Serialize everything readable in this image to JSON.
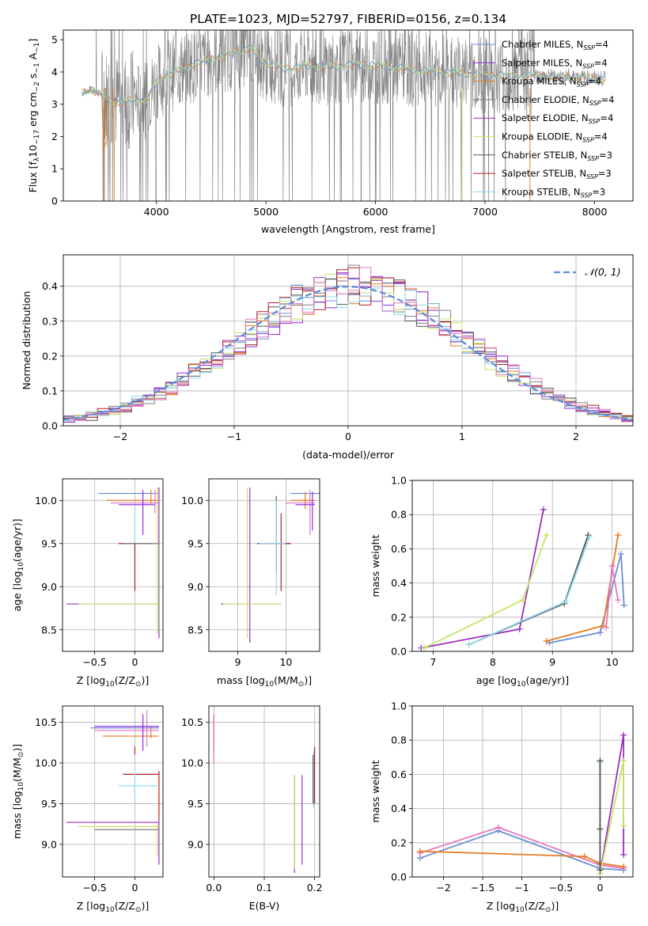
{
  "figure_title": "PLATE=1023, MJD=52797, FIBERID=0156, z=0.134",
  "colors": {
    "chabrier_miles": "#6a8fd6",
    "salpeter_miles": "#8a2be2",
    "kroupa_miles": "#e97a1f",
    "chabrier_elodie": "#7f7f7f",
    "salpeter_elodie": "#9b30c0",
    "kroupa_elodie": "#c7e36a",
    "chabrier_stelib": "#555555",
    "salpeter_stelib": "#b22222",
    "kroupa_stelib": "#8fdaf0",
    "pink": "#e377c2",
    "normal": "#5b8ed8",
    "grid": "#b0b0b0",
    "data": "#808080"
  },
  "legend_top": [
    {
      "base": "Chabrier MILES, N",
      "sub": "SSP",
      "rest": "=4",
      "color": "#6a8fd6"
    },
    {
      "base": "Salpeter MILES, N",
      "sub": "SSP",
      "rest": "=4",
      "color": "#8a2be2"
    },
    {
      "base": "Kroupa MILES, N",
      "sub": "SSP",
      "rest": "=4",
      "color": "#e97a1f"
    },
    {
      "base": "Chabrier ELODIE, N",
      "sub": "SSP",
      "rest": "=4",
      "color": "#7f7f7f"
    },
    {
      "base": "Salpeter ELODIE, N",
      "sub": "SSP",
      "rest": "=4",
      "color": "#9b30c0"
    },
    {
      "base": "Kroupa ELODIE, N",
      "sub": "SSP",
      "rest": "=4",
      "color": "#c7e36a"
    },
    {
      "base": "Chabrier STELIB, N",
      "sub": "SSP",
      "rest": "=3",
      "color": "#555555"
    },
    {
      "base": "Salpeter STELIB, N",
      "sub": "SSP",
      "rest": "=3",
      "color": "#b22222"
    },
    {
      "base": "Kroupa STELIB, N",
      "sub": "SSP",
      "rest": "=3",
      "color": "#8fdaf0"
    }
  ],
  "chart_data": [
    {
      "id": "spectrum",
      "type": "line",
      "xlabel": "wavelength [Angstrom, rest frame]",
      "ylabel_parts": [
        "Flux [f",
        "λ",
        "10",
        "−17",
        " erg cm",
        "−2",
        " s",
        "−1",
        " A",
        "−1",
        "]"
      ],
      "xlim": [
        3150,
        8350
      ],
      "ylim": [
        0,
        5.3
      ],
      "xticks": [
        4000,
        5000,
        6000,
        7000,
        8000
      ],
      "yticks": [
        0,
        1,
        2,
        3,
        4,
        5
      ],
      "continuum": {
        "x": [
          3320,
          3400,
          3500,
          3600,
          3700,
          3800,
          3900,
          4000,
          4100,
          4300,
          4500,
          4700,
          4860,
          5000,
          5200,
          5400,
          5600,
          5800,
          6000,
          6200,
          6400,
          6600,
          6800,
          7000,
          7200,
          7400,
          7600,
          7800,
          8000,
          8100
        ],
        "y": [
          3.35,
          3.45,
          3.3,
          3.1,
          3.05,
          3.2,
          3.1,
          3.7,
          3.9,
          4.2,
          4.4,
          4.6,
          4.75,
          4.25,
          4.1,
          4.2,
          4.15,
          4.25,
          4.2,
          4.15,
          4.05,
          4.0,
          3.95,
          3.9,
          3.9,
          3.9,
          3.85,
          3.85,
          3.8,
          3.8
        ]
      }
    },
    {
      "id": "residuals",
      "type": "line",
      "xlabel": "(data-model)/error",
      "ylabel": "Normed distribution",
      "xlim": [
        -2.5,
        2.5
      ],
      "ylim": [
        0,
        0.49
      ],
      "xticks": [
        -2,
        -1,
        0,
        1,
        2
      ],
      "yticks": [
        0.0,
        0.1,
        0.2,
        0.3,
        0.4
      ],
      "legend": "𝒩(0, 1)",
      "hist_bins": [
        -2.5,
        -2.4,
        -2.3,
        -2.2,
        -2.1,
        -2.0,
        -1.9,
        -1.8,
        -1.7,
        -1.6,
        -1.5,
        -1.4,
        -1.3,
        -1.2,
        -1.1,
        -1.0,
        -0.9,
        -0.8,
        -0.7,
        -0.6,
        -0.5,
        -0.4,
        -0.3,
        -0.2,
        -0.1,
        0.0,
        0.1,
        0.2,
        0.3,
        0.4,
        0.5,
        0.6,
        0.7,
        0.8,
        0.9,
        1.0,
        1.1,
        1.2,
        1.3,
        1.4,
        1.5,
        1.6,
        1.7,
        1.8,
        1.9,
        2.0,
        2.1,
        2.2,
        2.3,
        2.4,
        2.5
      ]
    },
    {
      "id": "age_vs_Z",
      "type": "scatter",
      "xlabel_parts": [
        "Z [log",
        "10",
        "(Z/Z",
        "⊙",
        ")]"
      ],
      "ylabel_parts": [
        "age  [log",
        "10",
        "(age/yr)]"
      ],
      "xlim": [
        -0.9,
        0.35
      ],
      "ylim": [
        8.25,
        10.25
      ],
      "xticks": [
        -0.5,
        0.0
      ],
      "yticks": [
        8.5,
        9.0,
        9.5,
        10.0
      ]
    },
    {
      "id": "age_vs_mass",
      "type": "scatter",
      "xlabel_parts": [
        "mass [log",
        "10",
        "(M/M",
        "⊙",
        ")]"
      ],
      "xlim": [
        8.4,
        10.7
      ],
      "ylim": [
        8.25,
        10.25
      ],
      "xticks": [
        9,
        10
      ],
      "yticks": [
        8.5,
        9.0,
        9.5,
        10.0
      ]
    },
    {
      "id": "massweight_vs_age",
      "type": "line",
      "xlabel_parts": [
        "age  [log",
        "10",
        "(age/yr)]"
      ],
      "ylabel": "mass weight",
      "xlim": [
        6.65,
        10.35
      ],
      "ylim": [
        0,
        1.0
      ],
      "xticks": [
        7,
        8,
        9,
        10
      ],
      "yticks": [
        0.0,
        0.2,
        0.4,
        0.6,
        0.8,
        1.0
      ],
      "series": [
        {
          "color": "#9b30c0",
          "x": [
            6.8,
            8.45,
            8.85
          ],
          "y": [
            0.02,
            0.13,
            0.83
          ]
        },
        {
          "color": "#c7e36a",
          "x": [
            6.85,
            8.5,
            8.9
          ],
          "y": [
            0.02,
            0.3,
            0.68
          ]
        },
        {
          "color": "#555555",
          "x": [
            7.6,
            9.2,
            9.6
          ],
          "y": [
            0.04,
            0.28,
            0.68
          ]
        },
        {
          "color": "#8fdaf0",
          "x": [
            7.6,
            9.22,
            9.62
          ],
          "y": [
            0.04,
            0.29,
            0.67
          ]
        },
        {
          "color": "#6a8fd6",
          "x": [
            8.95,
            9.8,
            10.15,
            10.2
          ],
          "y": [
            0.05,
            0.11,
            0.57,
            0.27
          ]
        },
        {
          "color": "#e97a1f",
          "x": [
            8.9,
            9.85,
            10.1
          ],
          "y": [
            0.06,
            0.15,
            0.68
          ]
        },
        {
          "color": "#e377c2",
          "x": [
            9.9,
            10.0,
            10.1
          ],
          "y": [
            0.14,
            0.5,
            0.3
          ]
        }
      ]
    },
    {
      "id": "mass_vs_Z",
      "type": "scatter",
      "xlabel_parts": [
        "Z [log",
        "10",
        "(Z/Z",
        "⊙",
        ")]"
      ],
      "ylabel_parts": [
        "mass [log",
        "10",
        "(M/M",
        "⊙",
        ")]"
      ],
      "xlim": [
        -0.9,
        0.35
      ],
      "ylim": [
        8.6,
        10.7
      ],
      "xticks": [
        -0.5,
        0.0
      ],
      "yticks": [
        9.0,
        9.5,
        10.0,
        10.5
      ]
    },
    {
      "id": "mass_vs_EBV",
      "type": "scatter",
      "xlabel": "E(B-V)",
      "xlim": [
        -0.01,
        0.21
      ],
      "ylim": [
        8.6,
        10.7
      ],
      "xticks": [
        0.0,
        0.1,
        0.2
      ],
      "yticks": [
        9.0,
        9.5,
        10.0,
        10.5
      ]
    },
    {
      "id": "massweight_vs_Z",
      "type": "line",
      "xlabel_parts": [
        "Z [log",
        "10",
        "(Z/Z",
        "⊙",
        ")]"
      ],
      "ylabel": "mass weight",
      "xlim": [
        -2.4,
        0.42
      ],
      "ylim": [
        0,
        1.0
      ],
      "xticks": [
        -2.0,
        -1.5,
        -1.0,
        -0.5,
        0.0
      ],
      "yticks": [
        0.0,
        0.2,
        0.4,
        0.6,
        0.8,
        1.0
      ],
      "series": [
        {
          "color": "#6a8fd6",
          "x": [
            -2.3,
            -1.3,
            0.0,
            0.3
          ],
          "y": [
            0.11,
            0.27,
            0.05,
            0.04
          ]
        },
        {
          "color": "#e377c2",
          "x": [
            -2.3,
            -1.3,
            0.0,
            0.3
          ],
          "y": [
            0.14,
            0.29,
            0.07,
            0.05
          ]
        },
        {
          "color": "#e97a1f",
          "x": [
            -2.3,
            -0.2,
            0.0,
            0.3
          ],
          "y": [
            0.15,
            0.12,
            0.08,
            0.06
          ]
        },
        {
          "color": "#9b30c0",
          "x": [
            0.0,
            0.3,
            0.3
          ],
          "y": [
            0.02,
            0.83,
            0.13
          ]
        },
        {
          "color": "#c7e36a",
          "x": [
            0.0,
            0.3,
            0.3
          ],
          "y": [
            0.02,
            0.68,
            0.3
          ]
        },
        {
          "color": "#8fdaf0",
          "x": [
            0.0,
            0.0,
            0.0
          ],
          "y": [
            0.04,
            0.28,
            0.67
          ]
        },
        {
          "color": "#555555",
          "x": [
            0.0,
            0.0,
            0.0
          ],
          "y": [
            0.04,
            0.28,
            0.68
          ]
        }
      ]
    }
  ]
}
